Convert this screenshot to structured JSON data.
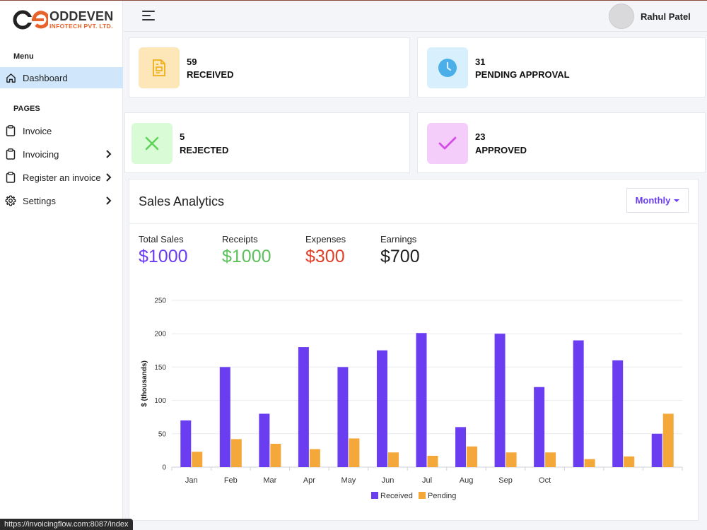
{
  "brand": {
    "name": "ODDEVEN",
    "tagline": "INFOTECH PVT. LTD."
  },
  "sidebar": {
    "menu_heading": "Menu",
    "pages_heading": "PAGES",
    "items": [
      {
        "label": "Dashboard",
        "icon": "home-icon",
        "active": true
      },
      {
        "label": "Invoice",
        "icon": "clipboard-icon"
      },
      {
        "label": "Invoicing",
        "icon": "clipboard-icon",
        "has_children": true
      },
      {
        "label": "Register an invoice",
        "icon": "clipboard-icon",
        "has_children": true
      },
      {
        "label": "Settings",
        "icon": "gear-icon",
        "has_children": true
      }
    ]
  },
  "header": {
    "user_name": "Rahul Patel"
  },
  "stats": [
    {
      "value": "59",
      "label": "RECEIVED",
      "icon": "document-icon",
      "icon_bg": "#fde7b8",
      "icon_color": "#f0b429"
    },
    {
      "value": "31",
      "label": "PENDING APPROVAL",
      "icon": "clock-icon",
      "icon_bg": "#d8effd",
      "icon_color": "#4aaee8"
    },
    {
      "value": "5",
      "label": "REJECTED",
      "icon": "close-icon",
      "icon_bg": "#d9fbd6",
      "icon_color": "#5fd35a"
    },
    {
      "value": "23",
      "label": "APPROVED",
      "icon": "check-icon",
      "icon_bg": "#f4cdfb",
      "icon_color": "#d44be6"
    }
  ],
  "analytics": {
    "title": "Sales Analytics",
    "period": "Monthly",
    "metrics": [
      {
        "label": "Total Sales",
        "value": "$1000",
        "color": "#6b3df0"
      },
      {
        "label": "Receipts",
        "value": "$1000",
        "color": "#5cc15a"
      },
      {
        "label": "Expenses",
        "value": "$300",
        "color": "#e0402a"
      },
      {
        "label": "Earnings",
        "value": "$700",
        "color": "#222222"
      }
    ]
  },
  "chart_data": {
    "type": "bar",
    "categories": [
      "Jan",
      "Feb",
      "Mar",
      "Apr",
      "May",
      "Jun",
      "Jul",
      "Aug",
      "Sep",
      "Oct",
      "",
      "",
      ""
    ],
    "series": [
      {
        "name": "Received",
        "color": "#6b3df0",
        "values": [
          70,
          150,
          80,
          180,
          150,
          175,
          201,
          60,
          200,
          120,
          190,
          160,
          50
        ]
      },
      {
        "name": "Pending",
        "color": "#f4a83a",
        "values": [
          23,
          42,
          35,
          27,
          43,
          22,
          17,
          31,
          22,
          22,
          12,
          16,
          80
        ]
      }
    ],
    "ylabel": "$ (thousands)",
    "ylim": [
      0,
      250
    ],
    "yticks": [
      0,
      50,
      100,
      150,
      200,
      250
    ],
    "grid": true,
    "legend": "bottom-center"
  },
  "status_url": "https://invoicingflow.com:8087/index"
}
